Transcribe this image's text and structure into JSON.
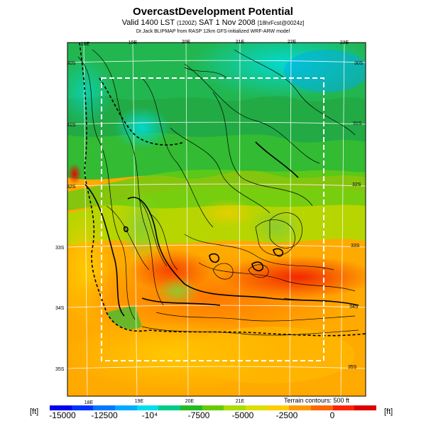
{
  "header": {
    "title": "OvercastDevelopment Potential",
    "subtitle_main": "Valid 1400 LST",
    "subtitle_small1": "(1200Z)",
    "subtitle_date": "SAT 1 Nov 2008",
    "subtitle_small2": "[18hrFcst@0024z]",
    "credit": "Dr.Jack BLIPMAP from RASP 12km GFS-initialized WRF-ARW model"
  },
  "map": {
    "top_lon_labels": [
      "18E",
      "19E",
      "20E",
      "21E",
      "22E",
      "23E"
    ],
    "bottom_lon_labels": [
      "18E",
      "19E",
      "20E",
      "21E"
    ],
    "left_lat_labels": [
      "30S",
      "31S",
      "32S",
      "33S",
      "34S",
      "35S"
    ],
    "right_lat_labels": [
      "30S",
      "31S",
      "32S",
      "33S",
      "34S",
      "35S"
    ],
    "terrain_note": "Terrain contours: 500 ft"
  },
  "colorbar": {
    "unit_left": "[ft]",
    "unit_right": "[ft]",
    "labels": [
      "-15000",
      "-12500",
      "-10⁴",
      "-7500",
      "-5000",
      "-2500",
      "0"
    ],
    "colors": [
      "#0000ee",
      "#0033ff",
      "#0077ff",
      "#00aaff",
      "#00ddee",
      "#00cc88",
      "#22bb22",
      "#66cc00",
      "#aadd00",
      "#dddd00",
      "#ffcc00",
      "#ff9900",
      "#ff6600",
      "#ff2200",
      "#dd0000"
    ]
  }
}
